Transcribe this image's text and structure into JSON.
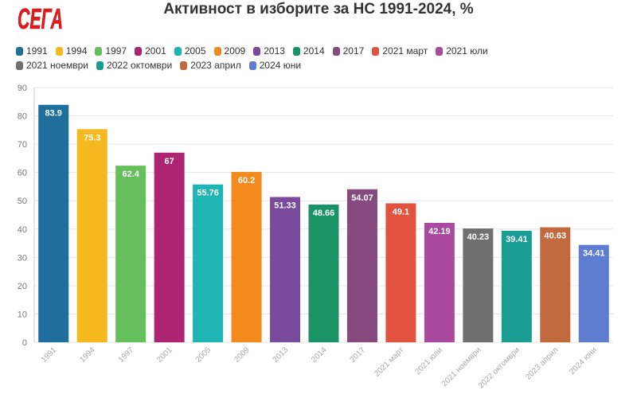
{
  "header": {
    "logo_text": "СЕГА",
    "title": "Активност в изборите за НС 1991-2024, %"
  },
  "colors": {
    "logo": "#e4191c",
    "grid": "#e6e6e6",
    "axis": "#cccccc"
  },
  "chart_data": {
    "type": "bar",
    "title": "Активност в изборите за НС 1991-2024, %",
    "xlabel": "",
    "ylabel": "",
    "ylim": [
      0,
      90
    ],
    "yticks": [
      0,
      10,
      20,
      30,
      40,
      50,
      60,
      70,
      80,
      90
    ],
    "grid": true,
    "legend_position": "top-left",
    "categories": [
      "1991",
      "1994",
      "1997",
      "2001",
      "2005",
      "2009",
      "2013",
      "2014",
      "2017",
      "2021 март",
      "2021 юли",
      "2021 ноември",
      "2022 октомври",
      "2023 април",
      "2024 юни"
    ],
    "values": [
      83.9,
      75.3,
      62.4,
      67,
      55.76,
      60.2,
      51.33,
      48.66,
      54.07,
      49.1,
      42.19,
      40.23,
      39.41,
      40.63,
      34.41
    ],
    "value_labels": [
      "83.9",
      "75.3",
      "62.4",
      "67",
      "55.76",
      "60.2",
      "51.33",
      "48.66",
      "54.07",
      "49.1",
      "42.19",
      "40.23",
      "39.41",
      "40.63",
      "34.41"
    ],
    "bar_colors": [
      "#1f6f9c",
      "#f5b91f",
      "#65bf5a",
      "#ad2470",
      "#1fb5b2",
      "#f28a1d",
      "#7a4a9c",
      "#1a9466",
      "#874a7f",
      "#e2533f",
      "#a94a9f",
      "#707070",
      "#1a9e93",
      "#c06a3d",
      "#5e7dd1"
    ]
  }
}
